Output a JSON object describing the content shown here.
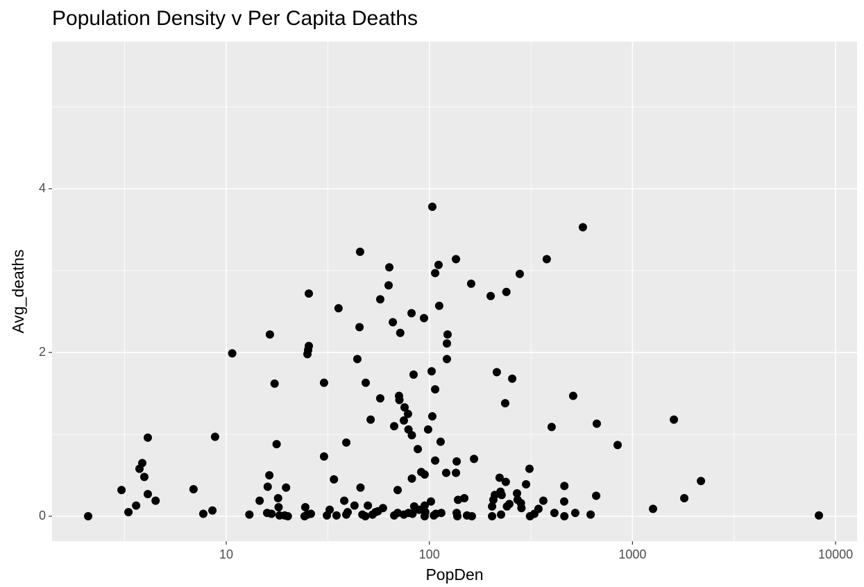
{
  "chart_data": {
    "type": "scatter",
    "title": "Population Density v Per Capita Deaths",
    "x_label": "PopDen",
    "y_label": "Avg_deaths",
    "xscale": "log",
    "color": "#000000",
    "grid": true,
    "xlim": [
      1.388,
      12754
    ],
    "ylim": [
      -0.305,
      5.797
    ],
    "xticks": [
      10,
      100,
      1000,
      10000
    ],
    "yticks": [
      0,
      2,
      4
    ],
    "x": [
      2.09,
      3.05,
      3.3,
      3.6,
      3.74,
      3.86,
      3.95,
      4.11,
      4.11,
      4.49,
      6.9,
      7.71,
      8.55,
      8.81,
      10.7,
      13.0,
      14.6,
      16.0,
      16.3,
      16.4,
      15.9,
      16.7,
      17.3,
      17.7,
      18.0,
      18.1,
      18.3,
      19.4,
      19.7,
      20.1,
      24.5,
      24.3,
      25.1,
      25.1,
      25.3,
      25.5,
      25.5,
      26.1,
      30.3,
      30.3,
      31.3,
      32.3,
      33.9,
      34.9,
      35.7,
      38.1,
      39.0,
      39.0,
      39.6,
      42.8,
      44.2,
      45.6,
      45.3,
      45.8,
      46.8,
      48.6,
      48.4,
      49.8,
      51.4,
      52.5,
      54.3,
      55.8,
      57.3,
      57.3,
      59.1,
      63.0,
      63.5,
      66.1,
      67.1,
      67.1,
      69.8,
      69.8,
      70.9,
      71.2,
      71.9,
      74.9,
      74.9,
      75.5,
      78.5,
      78.9,
      78.9,
      81.7,
      82.0,
      82.0,
      82.6,
      83.6,
      84.2,
      87.7,
      89.0,
      91.2,
      94.1,
      94.8,
      94.8,
      94.8,
      95.5,
      98.6,
      101.8,
      102.6,
      103.4,
      103.4,
      105.2,
      106.8,
      106.8,
      106.8,
      107.6,
      111.0,
      111.8,
      113.6,
      114.5,
      121.0,
      122.0,
      122.0,
      122.9,
      135.2,
      135.2,
      136.3,
      136.3,
      137.3,
      138.4,
      148.6,
      153.2,
      160.6,
      161.9,
      165.9,
      200.4,
      203.6,
      203.6,
      206.6,
      210.0,
      214.8,
      221.7,
      224.0,
      227.0,
      225.4,
      236.2,
      237.8,
      239.4,
      241.0,
      247.7,
      255.8,
      270.1,
      271.9,
      278.6,
      282.3,
      284.0,
      299.4,
      311.1,
      313.0,
      328.9,
      344.6,
      364.0,
      378.4,
      400.0,
      412.8,
      461.0,
      462.0,
      462.0,
      510.5,
      522.7,
      569.9,
      622.0,
      662.6,
      667.2,
      845.0,
      1262,
      1599,
      1799,
      2173,
      8275
    ],
    "values": [
      0,
      0.32,
      0.05,
      0.13,
      0.58,
      0.65,
      0.48,
      0.96,
      0.27,
      0.19,
      0.33,
      0.03,
      0.07,
      0.97,
      1.99,
      0.02,
      0.19,
      0.36,
      0.5,
      2.22,
      0.04,
      0.03,
      1.62,
      0.88,
      0.22,
      0.11,
      0.01,
      0.01,
      0.35,
      0,
      0.11,
      0,
      0.02,
      1.98,
      2.03,
      2.08,
      2.72,
      0.03,
      1.63,
      0.73,
      0.01,
      0.08,
      0.45,
      0.01,
      2.54,
      0.19,
      0.9,
      0.02,
      0.05,
      0.13,
      1.92,
      3.23,
      2.31,
      0.35,
      0.02,
      1.63,
      0,
      0.13,
      1.18,
      0.02,
      0.05,
      0.06,
      2.65,
      1.44,
      0.1,
      2.82,
      3.04,
      2.37,
      1.1,
      0.01,
      0.32,
      0.04,
      1.47,
      1.42,
      2.24,
      0.02,
      1.17,
      1.33,
      1.25,
      0.04,
      1.06,
      2.48,
      0.99,
      0.46,
      0.03,
      1.73,
      0.12,
      0.82,
      0.08,
      0.54,
      2.42,
      0,
      0.51,
      0.13,
      0.05,
      1.06,
      0.18,
      1.77,
      1.22,
      3.78,
      0.01,
      1.55,
      0.68,
      2.97,
      0.03,
      3.07,
      2.57,
      0.91,
      0.04,
      0.53,
      2.11,
      1.92,
      2.22,
      3.14,
      0.53,
      0.67,
      0.04,
      0,
      0.2,
      0.22,
      0.01,
      2.84,
      0,
      0.7,
      2.69,
      0.12,
      0,
      0.2,
      0.26,
      1.76,
      0.47,
      0.3,
      0.26,
      0.02,
      1.38,
      0.42,
      2.74,
      0.12,
      0.15,
      1.68,
      0.28,
      0.2,
      2.96,
      0.16,
      0.1,
      0.39,
      0.58,
      0,
      0.03,
      0.09,
      0.19,
      3.14,
      1.09,
      0.04,
      0.18,
      0.37,
      0,
      1.47,
      0.04,
      3.53,
      0.02,
      0.25,
      1.13,
      0.87,
      0.09,
      1.18,
      0.22,
      0.43,
      0.01
    ]
  }
}
